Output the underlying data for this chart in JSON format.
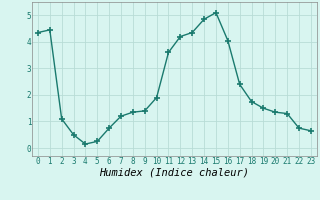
{
  "x": [
    0,
    1,
    2,
    3,
    4,
    5,
    6,
    7,
    8,
    9,
    10,
    11,
    12,
    13,
    14,
    15,
    16,
    17,
    18,
    19,
    20,
    21,
    22,
    23
  ],
  "y": [
    4.35,
    4.45,
    1.1,
    0.5,
    0.15,
    0.25,
    0.75,
    1.2,
    1.35,
    1.4,
    1.9,
    3.6,
    4.2,
    4.35,
    4.85,
    5.1,
    4.05,
    2.4,
    1.75,
    1.5,
    1.35,
    1.3,
    0.75,
    0.65
  ],
  "line_color": "#1a7a6e",
  "marker": "+",
  "markersize": 4,
  "markeredgewidth": 1.2,
  "linewidth": 1.0,
  "xlabel": "Humidex (Indice chaleur)",
  "xlim": [
    -0.5,
    23.5
  ],
  "ylim": [
    -0.3,
    5.5
  ],
  "yticks": [
    0,
    1,
    2,
    3,
    4,
    5
  ],
  "xticks": [
    0,
    1,
    2,
    3,
    4,
    5,
    6,
    7,
    8,
    9,
    10,
    11,
    12,
    13,
    14,
    15,
    16,
    17,
    18,
    19,
    20,
    21,
    22,
    23
  ],
  "bg_color": "#d8f5f0",
  "grid_color": "#b8dcd6",
  "tick_fontsize": 5.5,
  "xlabel_fontsize": 7.5,
  "spine_color": "#888888"
}
